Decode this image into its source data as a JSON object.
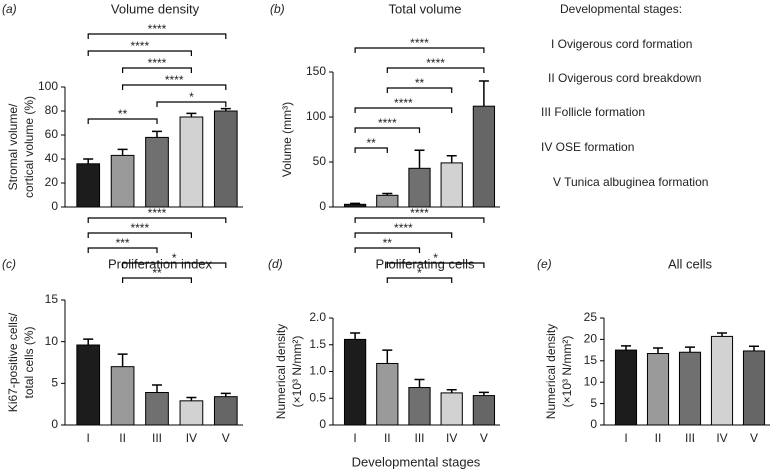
{
  "chart_data": [
    {
      "type": "bar",
      "panel": "(a)",
      "title": "Volume density",
      "ylabel": [
        "Stromal volume/",
        "cortical volume (%)"
      ],
      "categories": [
        null,
        null,
        null,
        null,
        null
      ],
      "values": [
        36,
        43,
        58,
        75,
        80
      ],
      "errors": [
        4,
        5,
        5,
        3,
        2
      ],
      "colors": [
        "#1c1c1c",
        "#9a9a9a",
        "#707070",
        "#d2d2d2",
        "#666666"
      ],
      "ylim": [
        0,
        100
      ],
      "yticks": [
        0,
        20,
        40,
        60,
        80,
        100
      ],
      "annotations": [
        {
          "from": 0,
          "to": 4,
          "label": "****"
        },
        {
          "from": 0,
          "to": 3,
          "label": "****"
        },
        {
          "from": 1,
          "to": 3,
          "label": "****"
        },
        {
          "from": 1,
          "to": 4,
          "label": "****"
        },
        {
          "from": 2,
          "to": 4,
          "label": "*"
        },
        {
          "from": 0,
          "to": 2,
          "label": "**"
        }
      ]
    },
    {
      "type": "bar",
      "panel": "(b)",
      "title": "Total volume",
      "ylabel": [
        "Volume (mm³)"
      ],
      "categories": [
        null,
        null,
        null,
        null,
        null
      ],
      "values": [
        3,
        13,
        43,
        49,
        112
      ],
      "errors": [
        1,
        2,
        20,
        8,
        28
      ],
      "colors": [
        "#1c1c1c",
        "#9a9a9a",
        "#707070",
        "#d2d2d2",
        "#666666"
      ],
      "ylim": [
        0,
        150
      ],
      "yticks": [
        0,
        50,
        100,
        150
      ],
      "annotations": [
        {
          "from": 0,
          "to": 4,
          "label": "****"
        },
        {
          "from": 1,
          "to": 4,
          "label": "****"
        },
        {
          "from": 1,
          "to": 3,
          "label": "**"
        },
        {
          "from": 0,
          "to": 3,
          "label": "****"
        },
        {
          "from": 0,
          "to": 2,
          "label": "****"
        },
        {
          "from": 0,
          "to": 1,
          "label": "**"
        }
      ]
    },
    {
      "type": "bar",
      "panel": "(c)",
      "title": "Proliferation index",
      "ylabel": [
        "Ki67-positive cells/",
        "total cells (%)"
      ],
      "categories": [
        "I",
        "II",
        "III",
        "IV",
        "V"
      ],
      "values": [
        9.6,
        7.0,
        3.9,
        2.9,
        3.4
      ],
      "errors": [
        0.7,
        1.5,
        0.9,
        0.4,
        0.4
      ],
      "colors": [
        "#1c1c1c",
        "#9a9a9a",
        "#707070",
        "#d2d2d2",
        "#666666"
      ],
      "ylim": [
        0,
        15
      ],
      "yticks": [
        0,
        5,
        10,
        15
      ],
      "annotations": [
        {
          "from": 0,
          "to": 4,
          "label": "****"
        },
        {
          "from": 0,
          "to": 3,
          "label": "****"
        },
        {
          "from": 0,
          "to": 2,
          "label": "***"
        },
        {
          "from": 1,
          "to": 4,
          "label": "*"
        },
        {
          "from": 1,
          "to": 3,
          "label": "**"
        }
      ]
    },
    {
      "type": "bar",
      "panel": "(d)",
      "title": "Proliferating cells",
      "ylabel": [
        "Numerical density",
        "(×10³ N/mm²)"
      ],
      "categories": [
        "I",
        "II",
        "III",
        "IV",
        "V"
      ],
      "values": [
        1.6,
        1.15,
        0.7,
        0.6,
        0.55
      ],
      "errors": [
        0.12,
        0.25,
        0.15,
        0.06,
        0.06
      ],
      "colors": [
        "#1c1c1c",
        "#9a9a9a",
        "#707070",
        "#d2d2d2",
        "#666666"
      ],
      "ylim": [
        0,
        2
      ],
      "yticks": [
        0,
        0.5,
        {
          "value": 1,
          "label": "1.0"
        },
        1.5,
        {
          "value": 2,
          "label": "2.0"
        }
      ],
      "annotations": [
        {
          "from": 0,
          "to": 4,
          "label": "****"
        },
        {
          "from": 0,
          "to": 3,
          "label": "****"
        },
        {
          "from": 0,
          "to": 2,
          "label": "**"
        },
        {
          "from": 1,
          "to": 4,
          "label": "*"
        },
        {
          "from": 1,
          "to": 3,
          "label": "*"
        }
      ]
    },
    {
      "type": "bar",
      "panel": "(e)",
      "title": "All cells",
      "ylabel": [
        "Numerical density",
        "(×10³ N/mm²)"
      ],
      "categories": [
        "I",
        "II",
        "III",
        "IV",
        "V"
      ],
      "values": [
        17.5,
        16.7,
        17.0,
        20.7,
        17.3
      ],
      "errors": [
        1.0,
        1.3,
        1.2,
        0.8,
        1.1
      ],
      "colors": [
        "#1c1c1c",
        "#9a9a9a",
        "#707070",
        "#d2d2d2",
        "#666666"
      ],
      "ylim": [
        0,
        25
      ],
      "yticks": [
        0,
        5,
        10,
        15,
        20,
        25
      ],
      "annotations": []
    }
  ],
  "stages": {
    "title": "Developmental stages:",
    "items": [
      "I Ovigerous cord formation",
      "II Ovigerous cord breakdown",
      "III Follicle formation",
      "IV OSE formation",
      "V Tunica albuginea formation"
    ]
  },
  "xlabel": "Developmental stages"
}
